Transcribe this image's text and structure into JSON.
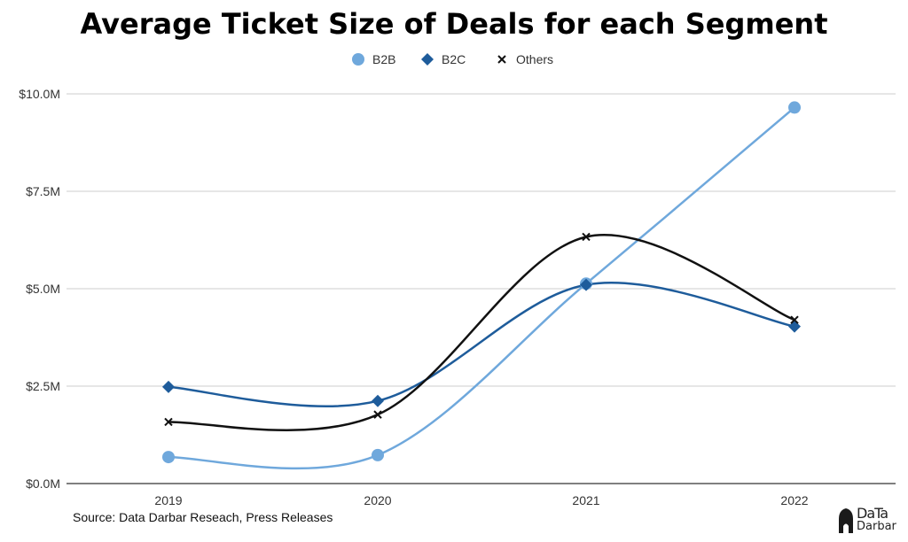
{
  "chart_data": {
    "type": "line",
    "title": "Average Ticket Size of Deals for each Segment",
    "categories": [
      "2019",
      "2020",
      "2021",
      "2022"
    ],
    "y_ticks": [
      "$0.0M",
      "$2.5M",
      "$5.0M",
      "$7.5M",
      "$10.0M"
    ],
    "ylim": [
      0,
      10
    ],
    "grid": true,
    "legend_position": "top-center",
    "series": [
      {
        "name": "B2B",
        "values": [
          0.68,
          0.73,
          5.13,
          9.65
        ],
        "color": "#6fa8dc",
        "marker": "circle"
      },
      {
        "name": "B2C",
        "values": [
          2.48,
          2.12,
          5.1,
          4.03
        ],
        "color": "#1e5c9b",
        "marker": "diamond"
      },
      {
        "name": "Others",
        "values": [
          1.58,
          1.77,
          6.33,
          4.2
        ],
        "color": "#111111",
        "marker": "x"
      }
    ]
  },
  "source": "Source: Data Darbar Reseach, Press Releases",
  "logo": {
    "top": "DaTa",
    "bottom": "Darbar"
  }
}
